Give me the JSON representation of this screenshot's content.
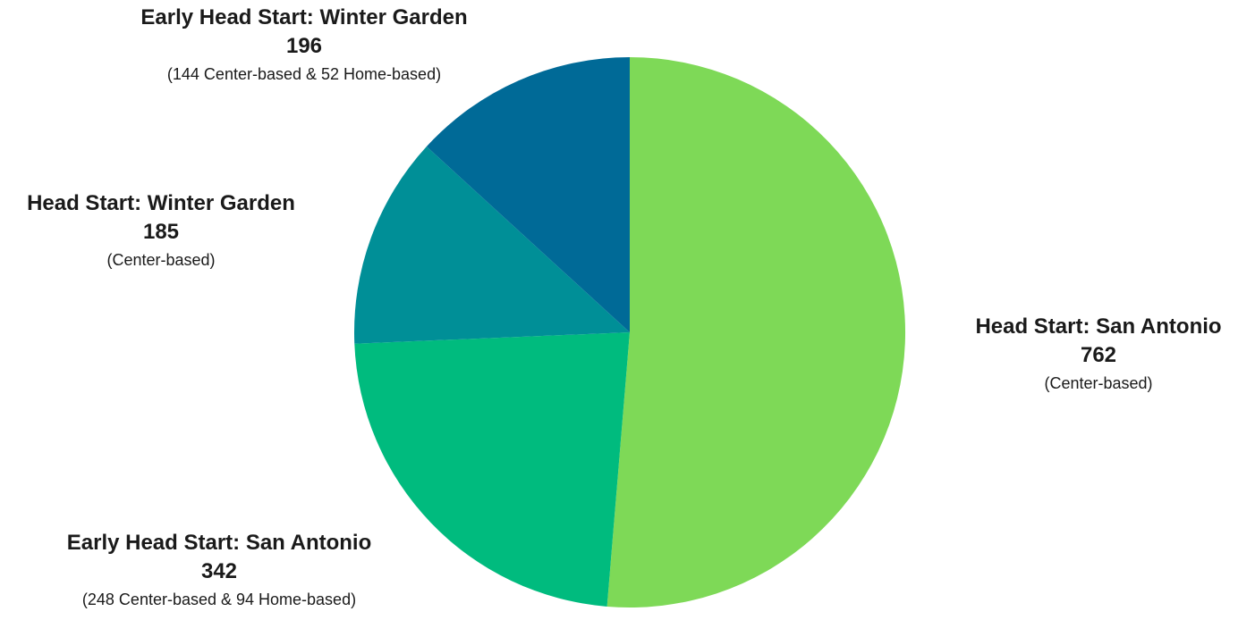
{
  "chart_data": {
    "type": "pie",
    "title": "",
    "start_angle_deg": 0,
    "direction": "clockwise",
    "slices": [
      {
        "name": "Head Start: San Antonio",
        "value": 762,
        "value_label": "762",
        "detail": "(Center-based)",
        "color": "#7ed957"
      },
      {
        "name": "Early Head Start: San Antonio",
        "value": 342,
        "value_label": "342",
        "detail": "(248 Center-based & 94 Home-based)",
        "color": "#00bb7e"
      },
      {
        "name": "Head Start: Winter Garden",
        "value": 185,
        "value_label": "185",
        "detail": "(Center-based)",
        "color": "#008f97"
      },
      {
        "name": "Early Head Start: Winter Garden",
        "value": 196,
        "value_label": "196",
        "detail": "(144 Center-based & 52 Home-based)",
        "color": "#006a97"
      }
    ]
  }
}
